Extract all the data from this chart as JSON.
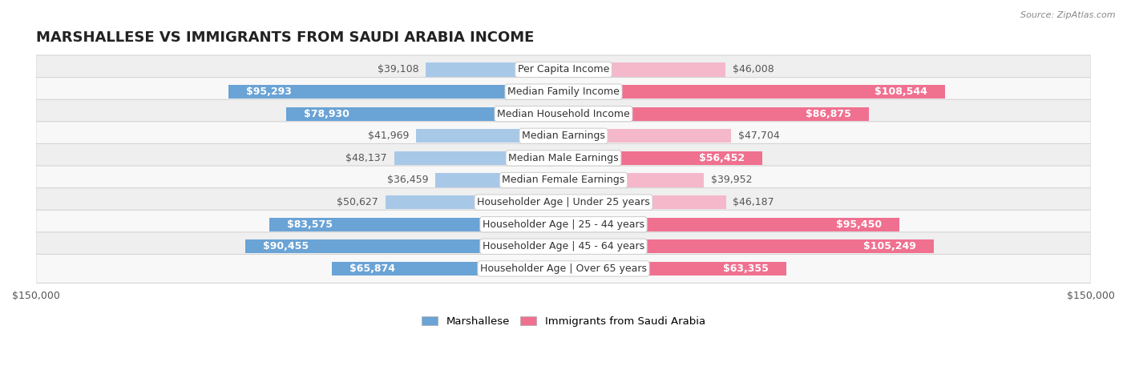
{
  "title": "MARSHALLESE VS IMMIGRANTS FROM SAUDI ARABIA INCOME",
  "source": "Source: ZipAtlas.com",
  "categories": [
    "Per Capita Income",
    "Median Family Income",
    "Median Household Income",
    "Median Earnings",
    "Median Male Earnings",
    "Median Female Earnings",
    "Householder Age | Under 25 years",
    "Householder Age | 25 - 44 years",
    "Householder Age | 45 - 64 years",
    "Householder Age | Over 65 years"
  ],
  "marshallese_values": [
    39108,
    95293,
    78930,
    41969,
    48137,
    36459,
    50627,
    83575,
    90455,
    65874
  ],
  "saudi_values": [
    46008,
    108544,
    86875,
    47704,
    56452,
    39952,
    46187,
    95450,
    105249,
    63355
  ],
  "marshallese_labels": [
    "$39,108",
    "$95,293",
    "$78,930",
    "$41,969",
    "$48,137",
    "$36,459",
    "$50,627",
    "$83,575",
    "$90,455",
    "$65,874"
  ],
  "saudi_labels": [
    "$46,008",
    "$108,544",
    "$86,875",
    "$47,704",
    "$56,452",
    "$39,952",
    "$46,187",
    "$95,450",
    "$105,249",
    "$63,355"
  ],
  "marshallese_color_light": "#a8c8e8",
  "marshallese_color_dark": "#6aa3d5",
  "saudi_color_light": "#f5b8cb",
  "saudi_color_dark": "#f07090",
  "max_value": 150000,
  "bar_height": 0.62,
  "label_font_size": 9,
  "category_font_size": 9,
  "title_font_size": 13,
  "inside_threshold": 55000,
  "row_colors": [
    "#efefef",
    "#f8f8f8",
    "#efefef",
    "#f8f8f8",
    "#efefef",
    "#f8f8f8",
    "#efefef",
    "#f8f8f8",
    "#efefef",
    "#f8f8f8"
  ]
}
